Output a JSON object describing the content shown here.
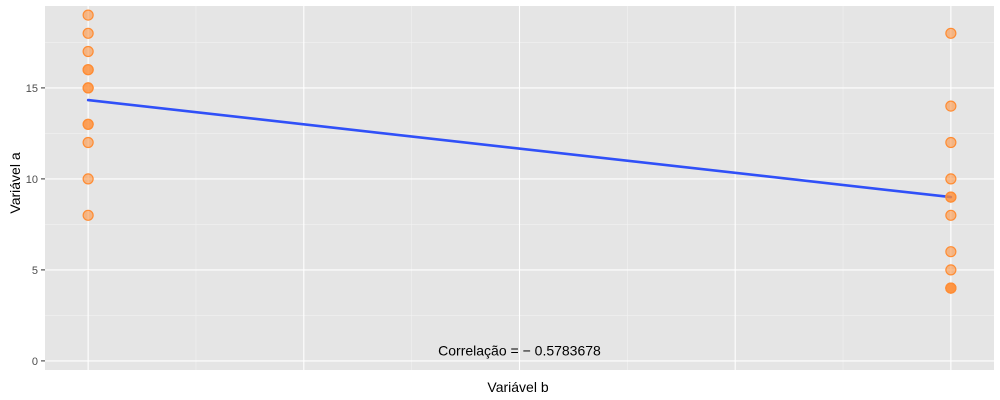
{
  "chart_data": {
    "type": "scatter",
    "title": "",
    "xlabel": "Variável b",
    "ylabel": "Variável a",
    "xlim": [
      -0.05,
      1.05
    ],
    "ylim": [
      -0.5,
      19.5
    ],
    "x_ticks": [],
    "y_ticks": [
      0,
      5,
      10,
      15
    ],
    "grid": true,
    "series": [
      {
        "x": [
          0,
          0,
          0,
          0,
          0,
          0,
          0,
          0,
          0,
          0,
          0,
          0,
          1,
          1,
          1,
          1,
          1,
          1,
          1,
          1,
          1,
          1,
          1,
          1
        ],
        "y": [
          19,
          18,
          17,
          16,
          16,
          15,
          15,
          13,
          13,
          12,
          10,
          8,
          18,
          14,
          12,
          10,
          9,
          9,
          8,
          6,
          5,
          4,
          4,
          4
        ],
        "color": "#ff8c33"
      }
    ],
    "regression_line": {
      "x": [
        0,
        1
      ],
      "y": [
        14.33,
        9.0
      ],
      "color": "#3050f8"
    },
    "annotation": {
      "text": "Correlação = − 0.5783678",
      "x": 0.5,
      "y": 0.3
    }
  }
}
